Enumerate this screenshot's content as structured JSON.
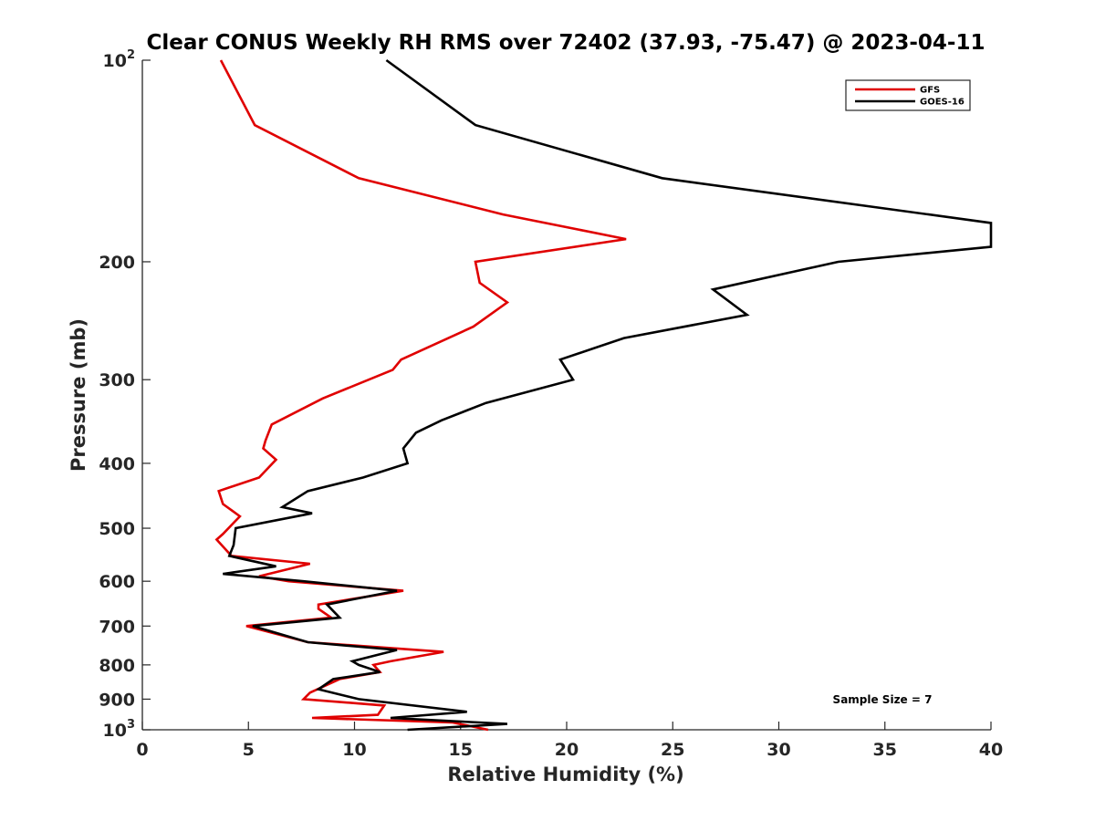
{
  "chart_data": {
    "type": "line",
    "title": "Clear CONUS Weekly RH RMS over 72402 (37.93, -75.47) @ 2023-04-11",
    "xlabel": "Relative Humidity (%)",
    "ylabel": "Pressure (mb)",
    "xlim": [
      0,
      40
    ],
    "ylim": [
      100,
      1000
    ],
    "yscale": "log",
    "y_reversed": true,
    "x_ticks": [
      0,
      5,
      10,
      15,
      20,
      25,
      30,
      35,
      40
    ],
    "x_tick_labels": [
      "0",
      "5",
      "10",
      "15",
      "20",
      "25",
      "30",
      "35",
      "40"
    ],
    "y_ticks": [
      100,
      200,
      300,
      400,
      500,
      600,
      700,
      800,
      900,
      1000
    ],
    "y_tick_labels": [
      {
        "base": "10",
        "exp": "2"
      },
      {
        "base": "200"
      },
      {
        "base": "300"
      },
      {
        "base": "400"
      },
      {
        "base": "500"
      },
      {
        "base": "600"
      },
      {
        "base": "700"
      },
      {
        "base": "800"
      },
      {
        "base": "900"
      },
      {
        "base": "10",
        "exp": "3"
      }
    ],
    "legend_position": "top-right",
    "annotation": "Sample Size = 7",
    "series": [
      {
        "name": "GFS",
        "color": "#e00000",
        "points": [
          [
            3.7,
            100
          ],
          [
            5.3,
            125
          ],
          [
            10.2,
            150
          ],
          [
            17.0,
            170
          ],
          [
            22.8,
            185
          ],
          [
            15.7,
            200
          ],
          [
            15.9,
            215
          ],
          [
            17.2,
            230
          ],
          [
            15.6,
            250
          ],
          [
            12.2,
            280
          ],
          [
            11.8,
            290
          ],
          [
            8.5,
            320
          ],
          [
            6.1,
            350
          ],
          [
            5.8,
            370
          ],
          [
            5.7,
            380
          ],
          [
            6.3,
            395
          ],
          [
            5.5,
            420
          ],
          [
            3.6,
            440
          ],
          [
            3.8,
            460
          ],
          [
            4.6,
            480
          ],
          [
            3.8,
            510
          ],
          [
            3.5,
            520
          ],
          [
            4.2,
            550
          ],
          [
            7.9,
            565
          ],
          [
            5.5,
            590
          ],
          [
            6.9,
            600
          ],
          [
            12.3,
            620
          ],
          [
            8.3,
            650
          ],
          [
            8.3,
            660
          ],
          [
            8.9,
            680
          ],
          [
            4.9,
            700
          ],
          [
            7.8,
            740
          ],
          [
            14.2,
            765
          ],
          [
            11.7,
            790
          ],
          [
            10.9,
            800
          ],
          [
            11.2,
            820
          ],
          [
            9.3,
            840
          ],
          [
            7.9,
            880
          ],
          [
            7.6,
            900
          ],
          [
            11.4,
            920
          ],
          [
            11.1,
            950
          ],
          [
            8.0,
            960
          ],
          [
            14.6,
            975
          ],
          [
            16.3,
            1000
          ]
        ]
      },
      {
        "name": "GOES-16",
        "color": "#000000",
        "points": [
          [
            11.5,
            100
          ],
          [
            15.7,
            125
          ],
          [
            24.5,
            150
          ],
          [
            40.0,
            175
          ],
          [
            40.0,
            190
          ],
          [
            32.8,
            200
          ],
          [
            26.9,
            220
          ],
          [
            28.5,
            240
          ],
          [
            22.7,
            260
          ],
          [
            19.7,
            280
          ],
          [
            20.3,
            300
          ],
          [
            16.2,
            325
          ],
          [
            14.1,
            345
          ],
          [
            12.9,
            360
          ],
          [
            12.3,
            380
          ],
          [
            12.5,
            400
          ],
          [
            10.4,
            420
          ],
          [
            7.8,
            440
          ],
          [
            6.6,
            465
          ],
          [
            8.0,
            475
          ],
          [
            4.4,
            500
          ],
          [
            4.3,
            530
          ],
          [
            4.1,
            550
          ],
          [
            6.3,
            570
          ],
          [
            3.8,
            585
          ],
          [
            7.6,
            600
          ],
          [
            12.0,
            620
          ],
          [
            8.7,
            650
          ],
          [
            9.3,
            680
          ],
          [
            5.2,
            700
          ],
          [
            7.8,
            740
          ],
          [
            12.0,
            760
          ],
          [
            9.9,
            790
          ],
          [
            10.2,
            800
          ],
          [
            11.2,
            820
          ],
          [
            9.0,
            840
          ],
          [
            8.3,
            870
          ],
          [
            10.2,
            900
          ],
          [
            15.3,
            940
          ],
          [
            11.7,
            960
          ],
          [
            17.2,
            980
          ],
          [
            12.5,
            1000
          ]
        ]
      }
    ]
  }
}
